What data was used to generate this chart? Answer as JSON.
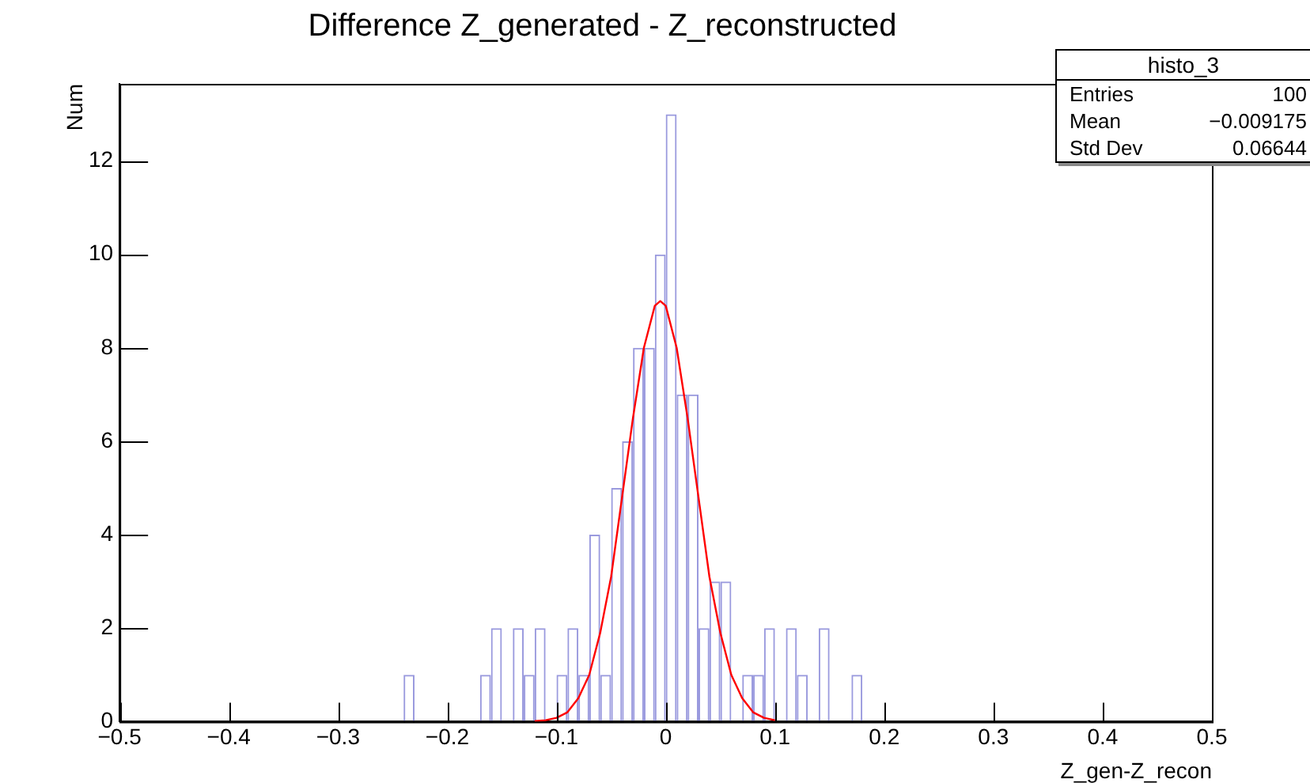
{
  "chart_data": {
    "type": "histogram",
    "title": "Difference Z_generated - Z_reconstructed",
    "xlabel": "Z_gen-Z_recon",
    "ylabel": "Num",
    "annotations": [
      "histo_3",
      "Entries",
      "100",
      "Mean",
      "−0.009175",
      "Std Dev",
      "0.06644"
    ],
    "color": "#9a9ade",
    "bins": [
      -0.5,
      -0.49,
      -0.48,
      -0.47,
      -0.46,
      -0.45,
      -0.44,
      -0.43,
      -0.42,
      -0.41,
      -0.4,
      -0.39,
      -0.38,
      -0.37,
      -0.36,
      -0.35,
      -0.34,
      -0.33,
      -0.32,
      -0.31,
      -0.3,
      -0.29,
      -0.28,
      -0.27,
      -0.26,
      -0.25,
      -0.24,
      -0.23,
      -0.22,
      -0.21,
      -0.2,
      -0.19,
      -0.18,
      -0.17,
      -0.16,
      -0.15,
      -0.14,
      -0.13,
      -0.12,
      -0.11,
      -0.1,
      -0.09,
      -0.08,
      -0.07,
      -0.06,
      -0.05,
      -0.04,
      -0.03,
      -0.02,
      -0.01,
      0,
      0.01,
      0.02,
      0.03,
      0.04,
      0.05,
      0.06,
      0.07,
      0.08,
      0.09,
      0.1,
      0.11,
      0.12,
      0.13,
      0.14,
      0.15,
      0.16,
      0.17,
      0.18,
      0.19,
      0.2,
      0.21,
      0.22,
      0.23,
      0.24,
      0.25,
      0.26,
      0.27,
      0.28,
      0.29,
      0.3,
      0.31,
      0.32,
      0.33,
      0.34,
      0.35,
      0.36,
      0.37,
      0.38,
      0.39,
      0.4,
      0.41,
      0.42,
      0.43,
      0.44,
      0.45,
      0.46,
      0.47,
      0.48,
      0.49,
      0.5
    ],
    "values": [
      0,
      0,
      0,
      0,
      0,
      0,
      0,
      0,
      0,
      0,
      0,
      0,
      0,
      0,
      0,
      0,
      0,
      0,
      0,
      0,
      0,
      0,
      0,
      0,
      0,
      0,
      1,
      0,
      0,
      0,
      0,
      0,
      0,
      1,
      2,
      0,
      2,
      1,
      2,
      0,
      1,
      2,
      1,
      4,
      1,
      5,
      6,
      8,
      8,
      10,
      13,
      7,
      7,
      2,
      3,
      3,
      0,
      1,
      1,
      2,
      0,
      2,
      1,
      0,
      2,
      0,
      0,
      1,
      0,
      0,
      0,
      0,
      0,
      0,
      0,
      0,
      0,
      0,
      0,
      0,
      0,
      0,
      0,
      0,
      0,
      0,
      0,
      0,
      0,
      0,
      0,
      0,
      0,
      0,
      0,
      0,
      0,
      0,
      0,
      0
    ],
    "series": [
      {
        "type": "line",
        "color": "#ff0000",
        "x": [
          -0.12,
          -0.11,
          -0.1,
          -0.09,
          -0.08,
          -0.07,
          -0.06,
          -0.05,
          -0.04,
          -0.03,
          -0.02,
          -0.01,
          -0.005,
          0,
          0.01,
          0.02,
          0.03,
          0.04,
          0.05,
          0.06,
          0.07,
          0.08,
          0.09,
          0.1
        ],
        "values": [
          0.01,
          0.03,
          0.08,
          0.2,
          0.5,
          1,
          1.9,
          3.1,
          4.8,
          6.5,
          8,
          8.9,
          9,
          8.9,
          8,
          6.5,
          4.8,
          3.1,
          1.9,
          1,
          0.5,
          0.2,
          0.08,
          0.03
        ]
      }
    ],
    "xlim": [
      -0.5,
      0.5
    ],
    "xticks": [
      {
        "value": -0.5,
        "label": "−0.5"
      },
      {
        "value": -0.4,
        "label": "−0.4"
      },
      {
        "value": -0.3,
        "label": "−0.3"
      },
      {
        "value": -0.2,
        "label": "−0.2"
      },
      {
        "value": -0.1,
        "label": "−0.1"
      },
      0,
      0.1,
      0.2,
      0.3,
      0.4,
      0.5
    ],
    "ylim": [
      0,
      13.65
    ],
    "yticks": [
      0,
      2,
      4,
      6,
      8,
      10,
      12
    ],
    "marker": "none",
    "legend": false,
    "grid": false
  }
}
